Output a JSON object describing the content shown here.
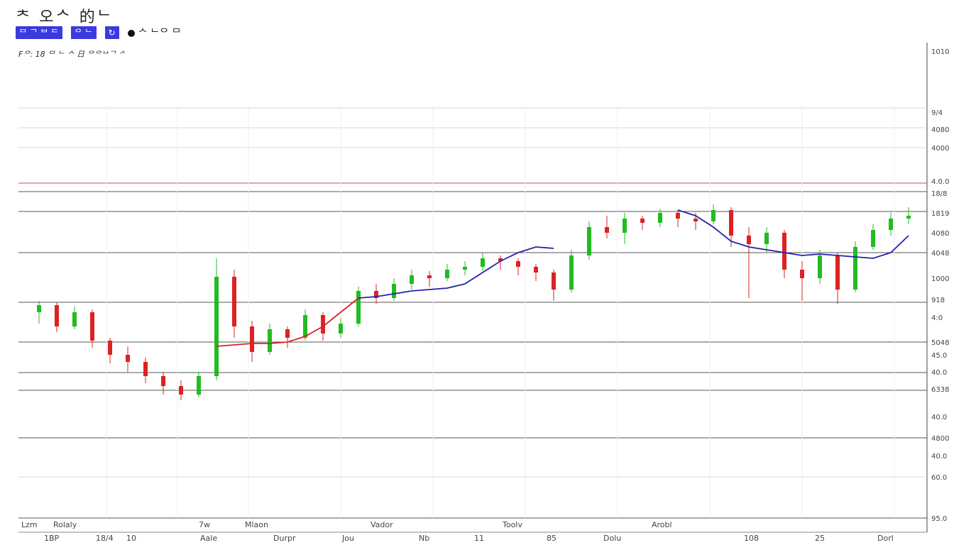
{
  "header": {
    "title": "ᄎ 오ᄉ 的ᄂ",
    "toolbar": [
      {
        "label": "ᄆ ᄀ ᄇ ᄃ"
      },
      {
        "label": "ᄋ ᄂ"
      },
      {
        "label": "↻"
      }
    ],
    "legend_label": "ᄉ ᄂᄋ ᄆ"
  },
  "subtitle": "Fᄋ: 18 ᄆ ᄂ ᄉ 日 ᄋᄋᄂᄉᄀ ᄼ",
  "chart_data": {
    "type": "candlestick",
    "colors": {
      "up": "#22bb22",
      "down": "#dd2222",
      "ma_red": "#dd2222",
      "ma_blue": "#2222aa",
      "grid": "#555555",
      "ref_line": "#dd4444"
    },
    "candles": [
      [
        80,
        88,
        72,
        85
      ],
      [
        85,
        87,
        66,
        70
      ],
      [
        70,
        84,
        68,
        80
      ],
      [
        80,
        82,
        55,
        60
      ],
      [
        60,
        62,
        44,
        50
      ],
      [
        50,
        56,
        38,
        45
      ],
      [
        45,
        48,
        30,
        35
      ],
      [
        35,
        38,
        22,
        28
      ],
      [
        28,
        32,
        18,
        22
      ],
      [
        22,
        38,
        20,
        35
      ],
      [
        35,
        118,
        32,
        105
      ],
      [
        105,
        110,
        62,
        70
      ],
      [
        70,
        74,
        45,
        52
      ],
      [
        52,
        72,
        50,
        68
      ],
      [
        68,
        70,
        55,
        62
      ],
      [
        62,
        82,
        60,
        78
      ],
      [
        78,
        80,
        60,
        65
      ],
      [
        65,
        76,
        62,
        72
      ],
      [
        72,
        98,
        70,
        95
      ],
      [
        95,
        100,
        86,
        90
      ],
      [
        90,
        104,
        88,
        100
      ],
      [
        100,
        110,
        96,
        106
      ],
      [
        106,
        109,
        98,
        104
      ],
      [
        104,
        114,
        102,
        110
      ],
      [
        110,
        116,
        106,
        112
      ],
      [
        112,
        122,
        109,
        118
      ],
      [
        118,
        120,
        110,
        116
      ],
      [
        116,
        118,
        106,
        112
      ],
      [
        112,
        114,
        102,
        108
      ],
      [
        108,
        110,
        88,
        96
      ],
      [
        96,
        124,
        94,
        120
      ],
      [
        120,
        144,
        117,
        140
      ],
      [
        140,
        148,
        132,
        136
      ],
      [
        136,
        150,
        128,
        146
      ],
      [
        146,
        148,
        138,
        143
      ],
      [
        143,
        153,
        140,
        150
      ],
      [
        150,
        152,
        140,
        146
      ],
      [
        146,
        150,
        138,
        144
      ],
      [
        144,
        156,
        142,
        152
      ],
      [
        152,
        154,
        126,
        134
      ],
      [
        134,
        140,
        90,
        128
      ],
      [
        128,
        140,
        122,
        136
      ],
      [
        136,
        138,
        104,
        110
      ],
      [
        110,
        116,
        88,
        104
      ],
      [
        104,
        124,
        100,
        120
      ],
      [
        120,
        122,
        86,
        96
      ],
      [
        96,
        130,
        94,
        126
      ],
      [
        126,
        142,
        124,
        138
      ],
      [
        138,
        150,
        134,
        146
      ],
      [
        146,
        154,
        142,
        148
      ]
    ],
    "moving_averages": [
      {
        "color": "red",
        "from_index": 10,
        "values": [
          56,
          57,
          58,
          58,
          59,
          63,
          70,
          80,
          90
        ]
      },
      {
        "color": "blue",
        "from_index": 18,
        "values": [
          90,
          91,
          93,
          95,
          96,
          97,
          100,
          108,
          116,
          122,
          126,
          125
        ]
      },
      {
        "color": "blue",
        "from_index": 36,
        "values": [
          152,
          148,
          140,
          130,
          126,
          124,
          122,
          120,
          121,
          120,
          119,
          118,
          122,
          134
        ]
      }
    ],
    "y_tick_labels": [
      "1010",
      "9/4",
      "4080",
      "4000",
      "4.0.0",
      "18/8",
      "1819",
      "4080",
      "4048",
      "1000",
      "918",
      "4:0",
      "5048",
      "45.0",
      "40.0",
      "6338",
      "40.0",
      "4800",
      "40.0",
      "60.0",
      "95.0"
    ],
    "x_tick_labels": [
      "1BP",
      "18/4",
      "10",
      "Aale",
      "Durpr",
      "Jou",
      "Nb",
      "11",
      "85",
      "Dolu",
      "108",
      "25",
      "Dorl"
    ],
    "x_upper_labels": [
      "Lzm",
      "Rolaly",
      "7w",
      "Mlaon",
      "Vador",
      "Toolv",
      "Arobl"
    ],
    "grid": true
  }
}
